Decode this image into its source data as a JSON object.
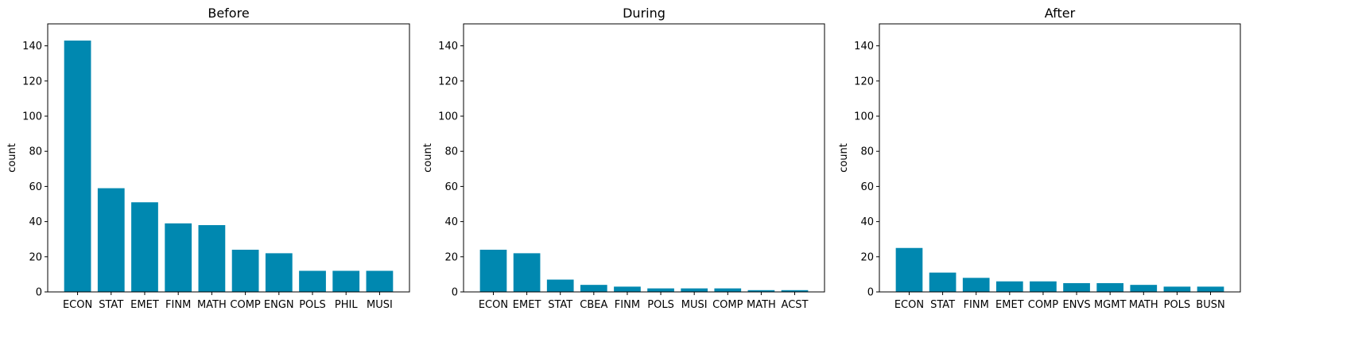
{
  "chart_data": [
    {
      "type": "bar",
      "title": "Before",
      "xlabel": "",
      "ylabel": "count",
      "ylim": [
        0,
        152.5
      ],
      "yticks": [
        0,
        20,
        40,
        60,
        80,
        100,
        120,
        140
      ],
      "categories": [
        "ECON",
        "STAT",
        "EMET",
        "FINM",
        "MATH",
        "COMP",
        "ENGN",
        "POLS",
        "PHIL",
        "MUSI"
      ],
      "values": [
        143,
        59,
        51,
        39,
        38,
        24,
        22,
        12,
        12,
        12
      ],
      "color": "#0088b0"
    },
    {
      "type": "bar",
      "title": "During",
      "xlabel": "",
      "ylabel": "count",
      "ylim": [
        0,
        152.5
      ],
      "yticks": [
        0,
        20,
        40,
        60,
        80,
        100,
        120,
        140
      ],
      "categories": [
        "ECON",
        "EMET",
        "STAT",
        "CBEA",
        "FINM",
        "POLS",
        "MUSI",
        "COMP",
        "MATH",
        "ACST"
      ],
      "values": [
        24,
        22,
        7,
        4,
        3,
        2,
        2,
        2,
        1,
        1
      ],
      "color": "#0088b0"
    },
    {
      "type": "bar",
      "title": "After",
      "xlabel": "",
      "ylabel": "count",
      "ylim": [
        0,
        152.5
      ],
      "yticks": [
        0,
        20,
        40,
        60,
        80,
        100,
        120,
        140
      ],
      "categories": [
        "ECON",
        "STAT",
        "FINM",
        "EMET",
        "COMP",
        "ENVS",
        "MGMT",
        "MATH",
        "POLS",
        "BUSN"
      ],
      "values": [
        25,
        11,
        8,
        6,
        6,
        5,
        5,
        4,
        3,
        3
      ],
      "color": "#0088b0"
    }
  ]
}
